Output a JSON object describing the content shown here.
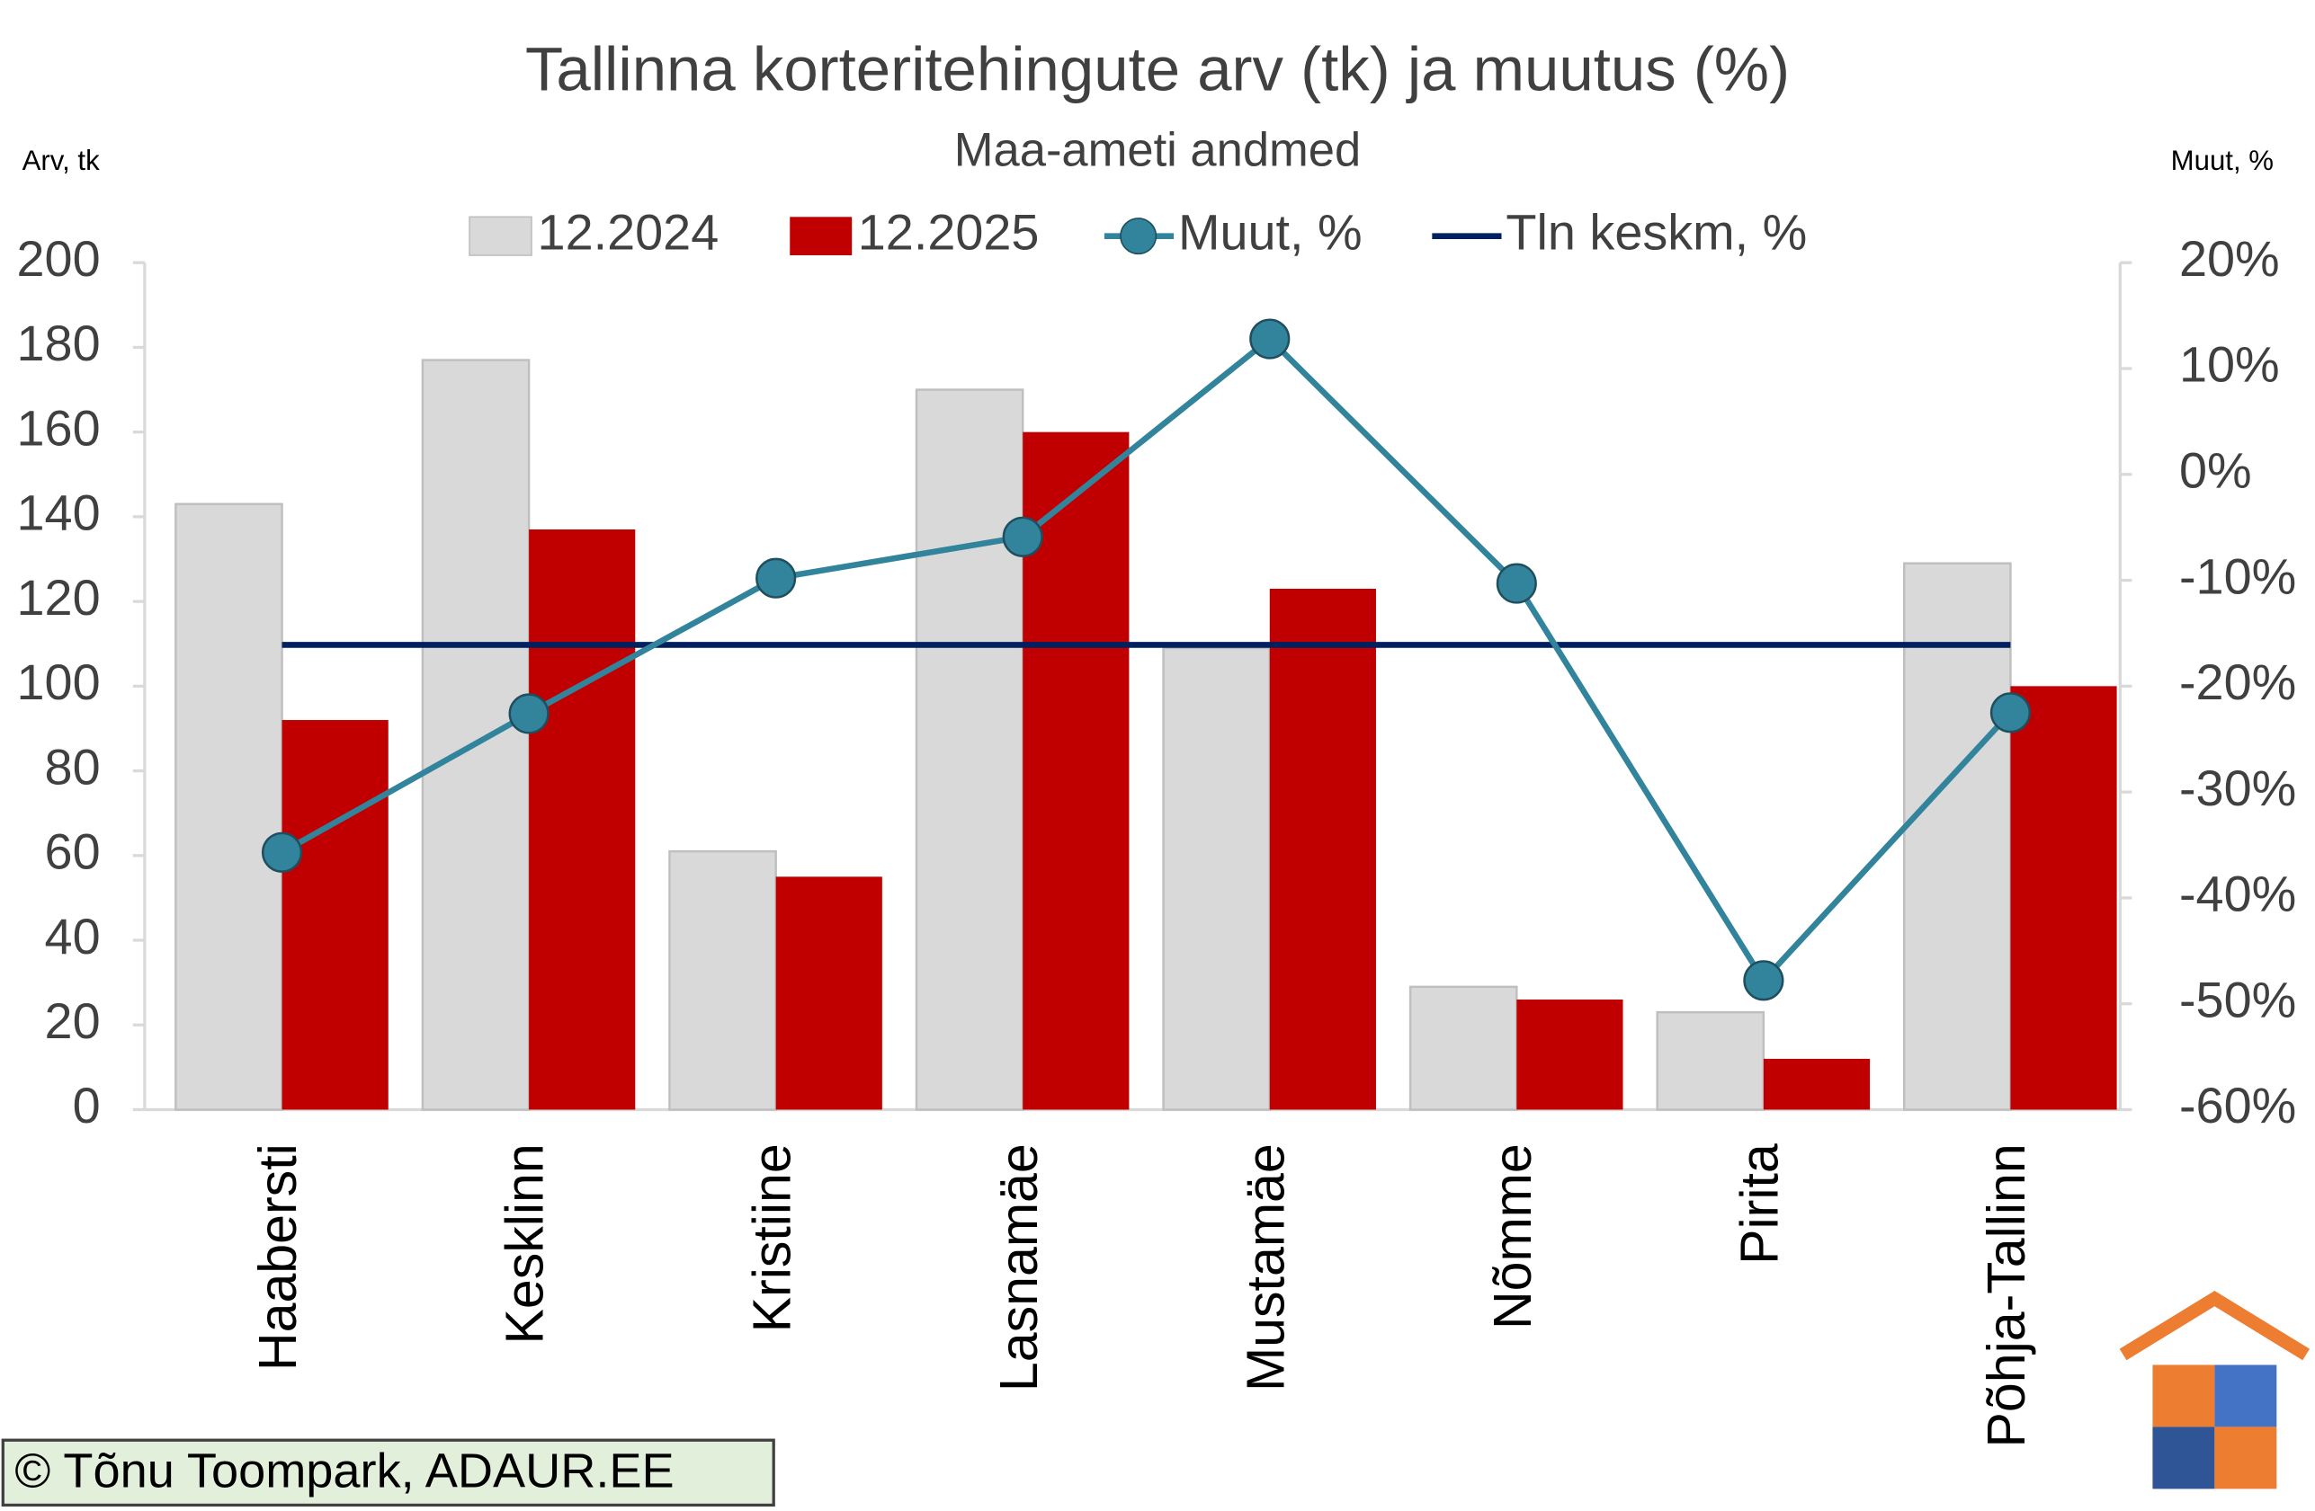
{
  "chart_data": {
    "type": "bar",
    "title": "Tallinna korteritehingute arv (tk) ja muutus (%)",
    "subtitle": "Maa-ameti andmed",
    "y_label": "Arv, tk",
    "y2_label": "Muut, %",
    "credit": "© Tõnu Toompark, ADAUR.EE",
    "categories": [
      "Haabersti",
      "Kesklinn",
      "Kristiine",
      "Lasnamäe",
      "Mustamäe",
      "Nõmme",
      "Pirita",
      "Põhja-Tallinn"
    ],
    "series": [
      {
        "name": "12.2024",
        "type": "bar",
        "color": "#d9d9d9",
        "values": [
          143,
          177,
          61,
          170,
          109,
          29,
          23,
          129
        ]
      },
      {
        "name": "12.2025",
        "type": "bar",
        "color": "#c00000",
        "values": [
          92,
          137,
          55,
          160,
          123,
          26,
          12,
          100
        ]
      },
      {
        "name": "Muut, %",
        "type": "line",
        "axis": "y2",
        "color": "#31849b",
        "values": [
          -35.7,
          -22.6,
          -9.8,
          -5.9,
          12.8,
          -10.3,
          -47.8,
          -22.5
        ]
      },
      {
        "name": "Tln keskm, %",
        "type": "hline",
        "axis": "y2",
        "color": "#002060",
        "value": -16.1
      }
    ],
    "ylim": [
      0,
      200
    ],
    "yticks": [
      0,
      20,
      40,
      60,
      80,
      100,
      120,
      140,
      160,
      180,
      200
    ],
    "y2lim": [
      -60,
      20
    ],
    "y2ticks": [
      {
        "value": -60,
        "label": "-60%"
      },
      {
        "value": -50,
        "label": "-50%"
      },
      {
        "value": -40,
        "label": "-40%"
      },
      {
        "value": -30,
        "label": "-30%"
      },
      {
        "value": -20,
        "label": "-20%"
      },
      {
        "value": -10,
        "label": "-10%"
      },
      {
        "value": 0,
        "label": "0%"
      },
      {
        "value": 10,
        "label": "10%"
      },
      {
        "value": 20,
        "label": "20%"
      }
    ],
    "grid": false,
    "legend": "top"
  }
}
